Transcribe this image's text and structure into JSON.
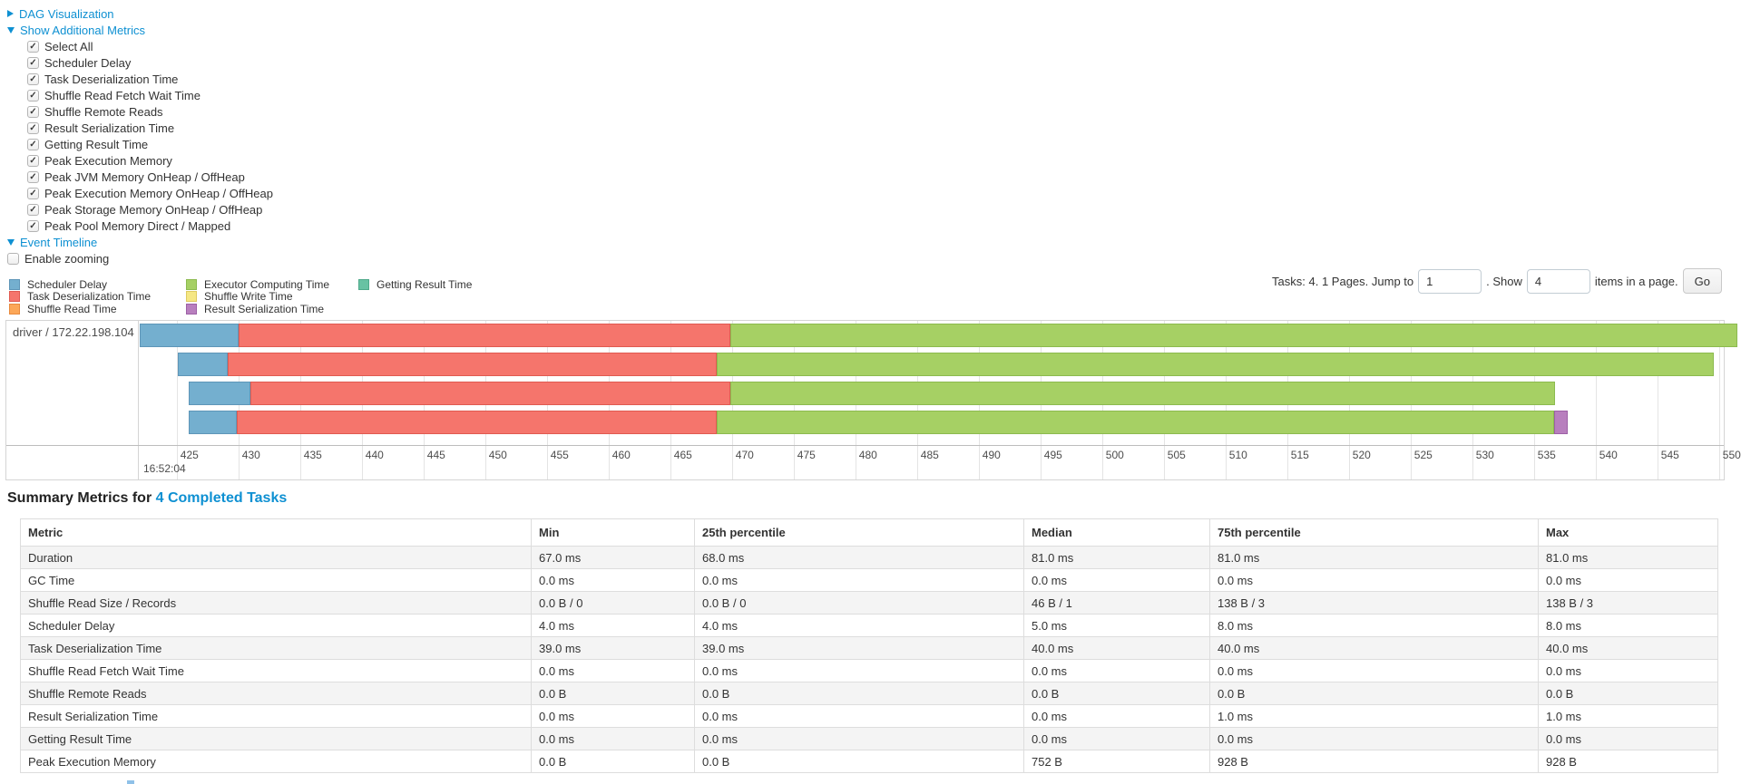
{
  "palette": {
    "link": "#0e90d2",
    "scheduler_delay": {
      "fill": "#74AFCF",
      "border": "#5E96B8"
    },
    "task_deserialization": {
      "fill": "#F5756C",
      "border": "#E05A51"
    },
    "shuffle_read": {
      "fill": "#FCA758",
      "border": "#E88A3E"
    },
    "executor_computing": {
      "fill": "#A6D064",
      "border": "#8CBA4F"
    },
    "shuffle_write": {
      "fill": "#F5E783",
      "border": "#DECB60"
    },
    "result_serialization": {
      "fill": "#B87FBE",
      "border": "#9D60A6"
    },
    "getting_result": {
      "fill": "#68C2A3",
      "border": "#4EA98A"
    }
  },
  "toggles": {
    "dag_label": "DAG Visualization",
    "metrics_label": "Show Additional Metrics",
    "timeline_label": "Event Timeline"
  },
  "metric_checkboxes": [
    "Select All",
    "Scheduler Delay",
    "Task Deserialization Time",
    "Shuffle Read Fetch Wait Time",
    "Shuffle Remote Reads",
    "Result Serialization Time",
    "Getting Result Time",
    "Peak Execution Memory",
    "Peak JVM Memory OnHeap / OffHeap",
    "Peak Execution Memory OnHeap / OffHeap",
    "Peak Storage Memory OnHeap / OffHeap",
    "Peak Pool Memory Direct / Mapped"
  ],
  "enable_zooming_label": "Enable zooming",
  "legend_columns": [
    [
      {
        "label": "Scheduler Delay",
        "color": "scheduler_delay"
      },
      {
        "label": "Task Deserialization Time",
        "color": "task_deserialization"
      },
      {
        "label": "Shuffle Read Time",
        "color": "shuffle_read"
      }
    ],
    [
      {
        "label": "Executor Computing Time",
        "color": "executor_computing"
      },
      {
        "label": "Shuffle Write Time",
        "color": "shuffle_write"
      },
      {
        "label": "Result Serialization Time",
        "color": "result_serialization"
      }
    ],
    [
      {
        "label": "Getting Result Time",
        "color": "getting_result"
      }
    ]
  ],
  "pagination": {
    "summary": "Tasks: 4. 1 Pages. Jump to",
    "jump_value": "1",
    "show_label": ". Show",
    "show_value": "4",
    "suffix": "items in a page.",
    "go_label": "Go"
  },
  "timeline": {
    "group_label": "driver / 172.22.198.104",
    "axis": {
      "tick_start": 425,
      "tick_step": 5,
      "tick_end": 550,
      "major_label": "16:52:04"
    },
    "tasks": [
      {
        "segments": [
          [
            "scheduler_delay",
            422.0,
            430.0
          ],
          [
            "task_deserialization",
            430.0,
            469.9
          ],
          [
            "executor_computing",
            469.9,
            551.5
          ]
        ]
      },
      {
        "segments": [
          [
            "scheduler_delay",
            425.1,
            429.1
          ],
          [
            "task_deserialization",
            429.1,
            468.8
          ],
          [
            "executor_computing",
            468.8,
            549.6
          ]
        ]
      },
      {
        "segments": [
          [
            "scheduler_delay",
            426.0,
            431.0
          ],
          [
            "task_deserialization",
            431.0,
            469.9
          ],
          [
            "executor_computing",
            469.9,
            536.7
          ]
        ]
      },
      {
        "segments": [
          [
            "scheduler_delay",
            426.0,
            429.9
          ],
          [
            "task_deserialization",
            429.9,
            468.8
          ],
          [
            "executor_computing",
            468.8,
            536.6
          ],
          [
            "result_serialization",
            536.6,
            537.7
          ]
        ]
      }
    ]
  },
  "summary": {
    "heading_prefix": "Summary Metrics for ",
    "heading_link": "4 Completed Tasks",
    "columns": [
      "Metric",
      "Min",
      "25th percentile",
      "Median",
      "75th percentile",
      "Max"
    ],
    "rows": [
      [
        "Duration",
        "67.0 ms",
        "68.0 ms",
        "81.0 ms",
        "81.0 ms",
        "81.0 ms"
      ],
      [
        "GC Time",
        "0.0 ms",
        "0.0 ms",
        "0.0 ms",
        "0.0 ms",
        "0.0 ms"
      ],
      [
        "Shuffle Read Size / Records",
        "0.0 B / 0",
        "0.0 B / 0",
        "46 B / 1",
        "138 B / 3",
        "138 B / 3"
      ],
      [
        "Scheduler Delay",
        "4.0 ms",
        "4.0 ms",
        "5.0 ms",
        "8.0 ms",
        "8.0 ms"
      ],
      [
        "Task Deserialization Time",
        "39.0 ms",
        "39.0 ms",
        "40.0 ms",
        "40.0 ms",
        "40.0 ms"
      ],
      [
        "Shuffle Read Fetch Wait Time",
        "0.0 ms",
        "0.0 ms",
        "0.0 ms",
        "0.0 ms",
        "0.0 ms"
      ],
      [
        "Shuffle Remote Reads",
        "0.0 B",
        "0.0 B",
        "0.0 B",
        "0.0 B",
        "0.0 B"
      ],
      [
        "Result Serialization Time",
        "0.0 ms",
        "0.0 ms",
        "0.0 ms",
        "1.0 ms",
        "1.0 ms"
      ],
      [
        "Getting Result Time",
        "0.0 ms",
        "0.0 ms",
        "0.0 ms",
        "0.0 ms",
        "0.0 ms"
      ],
      [
        "Peak Execution Memory",
        "0.0 B",
        "0.0 B",
        "752 B",
        "928 B",
        "928 B"
      ]
    ]
  }
}
